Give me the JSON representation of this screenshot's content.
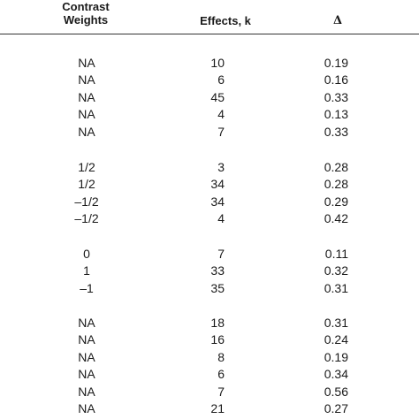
{
  "header": {
    "weights_line1": "Contrast",
    "weights_line2": "Weights",
    "effects": "Effects, k",
    "delta": "Δ"
  },
  "groups": [
    {
      "rows": [
        {
          "weight": "NA",
          "k": "10",
          "delta": "0.19"
        },
        {
          "weight": "NA",
          "k": "6",
          "delta": "0.16"
        },
        {
          "weight": "NA",
          "k": "45",
          "delta": "0.33"
        },
        {
          "weight": "NA",
          "k": "4",
          "delta": "0.13"
        },
        {
          "weight": "NA",
          "k": "7",
          "delta": "0.33"
        }
      ]
    },
    {
      "rows": [
        {
          "weight": "1/2",
          "k": "3",
          "delta": "0.28"
        },
        {
          "weight": "1/2",
          "k": "34",
          "delta": "0.28"
        },
        {
          "weight": "–1/2",
          "k": "34",
          "delta": "0.29"
        },
        {
          "weight": "–1/2",
          "k": "4",
          "delta": "0.42"
        }
      ]
    },
    {
      "rows": [
        {
          "weight": "0",
          "k": "7",
          "delta": "0.11"
        },
        {
          "weight": "1",
          "k": "33",
          "delta": "0.32"
        },
        {
          "weight": "–1",
          "k": "35",
          "delta": "0.31"
        }
      ]
    },
    {
      "rows": [
        {
          "weight": "NA",
          "k": "18",
          "delta": "0.31"
        },
        {
          "weight": "NA",
          "k": "16",
          "delta": "0.24"
        },
        {
          "weight": "NA",
          "k": "8",
          "delta": "0.19"
        },
        {
          "weight": "NA",
          "k": "6",
          "delta": "0.34"
        },
        {
          "weight": "NA",
          "k": "7",
          "delta": "0.56"
        },
        {
          "weight": "NA",
          "k": "21",
          "delta": "0.27"
        }
      ]
    }
  ]
}
